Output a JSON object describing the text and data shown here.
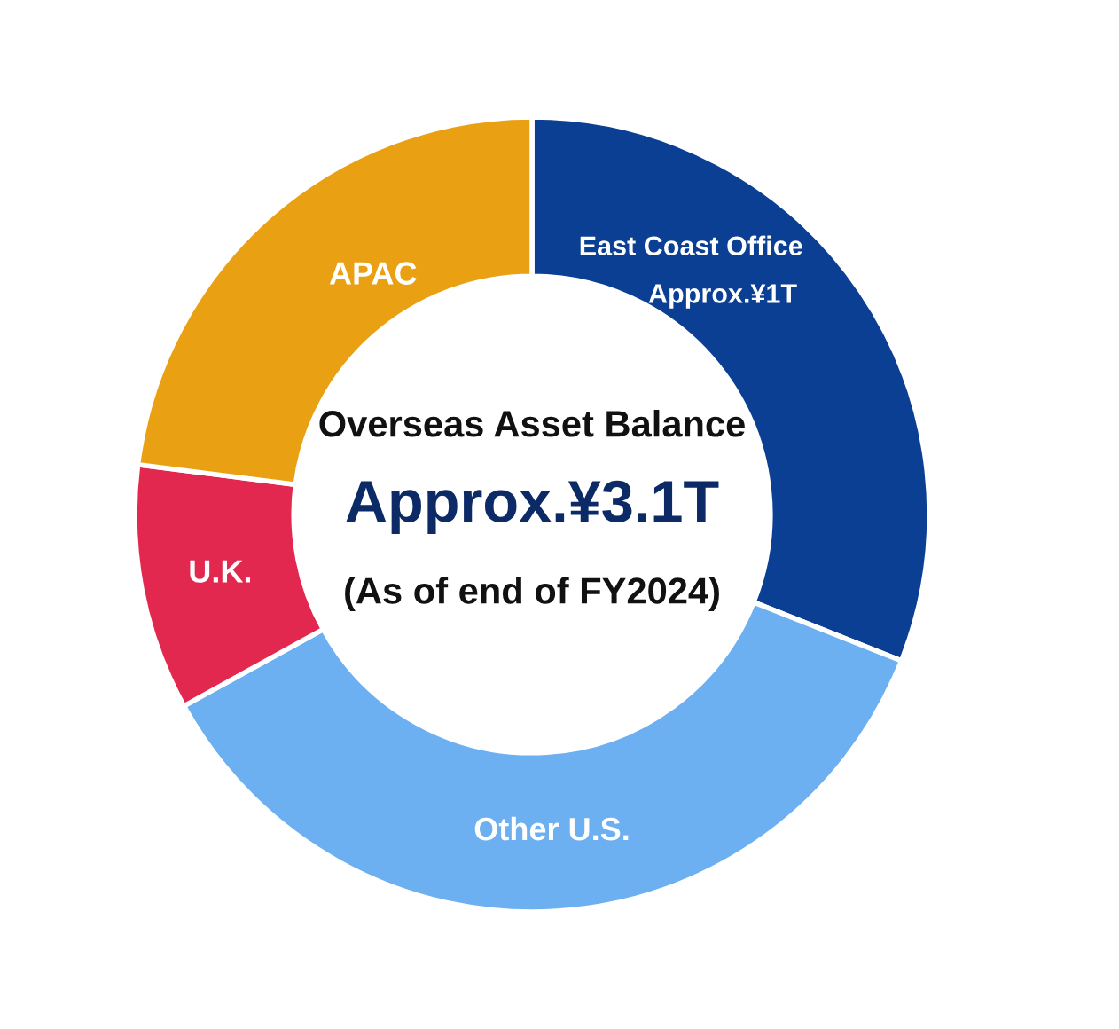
{
  "chart_data": {
    "type": "donut",
    "title": "Overseas Asset Balance",
    "categories": [
      "East Coast Office",
      "Other U.S.",
      "U.K.",
      "APAC"
    ],
    "values": [
      31,
      36,
      10,
      23
    ],
    "colors": [
      "#0b3f94",
      "#6cb0f2",
      "#e2284e",
      "#e9a012"
    ],
    "annotations": [
      "Approx.¥1T",
      "Approx.¥3.1T",
      "(As of end of FY2024)"
    ],
    "legend": false
  }
}
